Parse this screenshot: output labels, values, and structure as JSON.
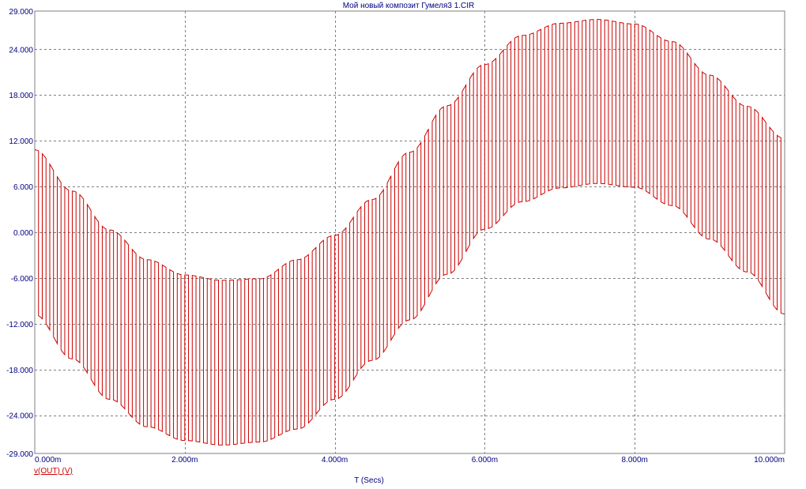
{
  "window": {
    "title": "Мой новый композит Гумеля3 1.CIR"
  },
  "chart_data": {
    "type": "line",
    "title": "Мой новый композит Гумеля3 1.CIR",
    "xlabel": "T (Secs)",
    "ylabel": "",
    "trace_label": "v(OUT) (V)",
    "x_unit": "s",
    "xlim": [
      0,
      0.01
    ],
    "ylim": [
      -29,
      29
    ],
    "x_ticks": [
      0,
      0.002,
      0.004,
      0.006,
      0.008,
      0.01
    ],
    "x_tick_labels": [
      "0.000m",
      "2.000m",
      "4.000m",
      "6.000m",
      "8.000m",
      "10.000m"
    ],
    "y_ticks": [
      29,
      24,
      18,
      12,
      6,
      0,
      -6,
      -12,
      -18,
      -24,
      -29
    ],
    "y_tick_labels": [
      "29.000",
      "24.000",
      "18.000",
      "12.000",
      "6.000",
      "0.000",
      "-6.000",
      "-12.000",
      "-18.000",
      "-24.000",
      "-29.000"
    ],
    "grid": true,
    "colors": {
      "trace": "#cc0000",
      "grid": "#7f7f7f",
      "axis_text": "#000080",
      "title_text": "#000080",
      "background": "#ffffff"
    },
    "series": [
      {
        "name": "v(OUT) (V)",
        "kind": "chopped-sine",
        "chop_period": 0.0001,
        "envelope_center_offset": 0,
        "envelope_high": {
          "x": [
            0,
            0.0005,
            0.001,
            0.0015,
            0.002,
            0.0025,
            0.003,
            0.0035,
            0.004,
            0.0045,
            0.005,
            0.0055,
            0.006,
            0.0065,
            0.007,
            0.0075,
            0.008,
            0.0085,
            0.009,
            0.0095,
            0.01
          ],
          "y": [
            10.8,
            5.4,
            0.3,
            -3.6,
            -5.6,
            -6.3,
            -6.1,
            -3.6,
            -0.4,
            4.3,
            10.5,
            16.6,
            22.0,
            25.8,
            27.4,
            27.9,
            27.3,
            25.0,
            20.6,
            16.5,
            12.3
          ]
        },
        "envelope_low": {
          "x": [
            0,
            0.0005,
            0.001,
            0.0015,
            0.002,
            0.0025,
            0.003,
            0.0035,
            0.004,
            0.0045,
            0.005,
            0.0055,
            0.006,
            0.0065,
            0.007,
            0.0075,
            0.008,
            0.0085,
            0.009,
            0.0095,
            0.01
          ],
          "y": [
            -10.8,
            -16.6,
            -21.9,
            -25.5,
            -27.3,
            -27.9,
            -27.5,
            -25.8,
            -21.9,
            -16.8,
            -11.5,
            -5.5,
            0.4,
            4.0,
            5.8,
            6.4,
            5.9,
            3.5,
            -0.9,
            -5.2,
            -10.7
          ]
        }
      }
    ]
  }
}
